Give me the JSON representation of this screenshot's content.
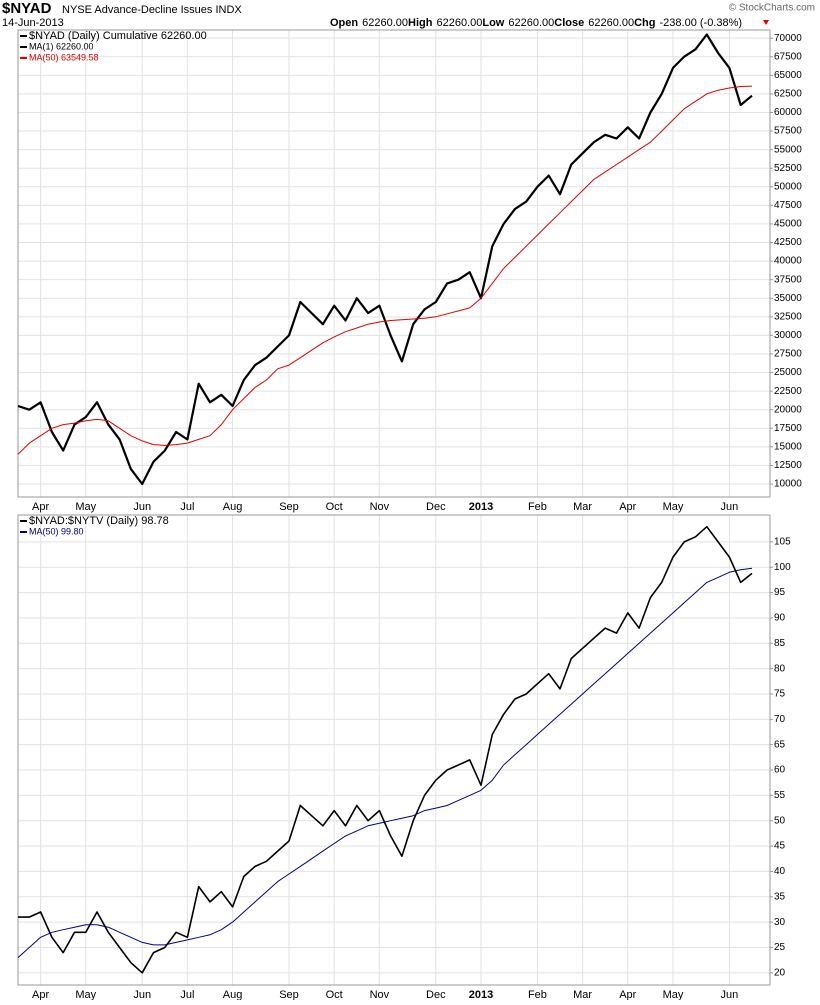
{
  "header": {
    "symbol": "$NYAD",
    "name": "NYSE Advance-Decline Issues INDX",
    "date": "14-Jun-2013",
    "quote": [
      {
        "label": "Open",
        "value": "62260.00"
      },
      {
        "label": "High",
        "value": "62260.00"
      },
      {
        "label": "Low",
        "value": "62260.00"
      },
      {
        "label": "Close",
        "value": "62260.00"
      },
      {
        "label": "Chg",
        "value": "-238.00 (-0.38%)"
      }
    ],
    "copyright": "© StockCharts.com"
  },
  "chart_data": [
    {
      "type": "line",
      "extra_legend": "MA(1) 62260.00",
      "categories": [
        null,
        null,
        "Apr",
        null,
        null,
        null,
        "May",
        null,
        null,
        null,
        null,
        "Jun",
        null,
        null,
        null,
        "Jul",
        null,
        null,
        null,
        "Aug",
        null,
        null,
        null,
        null,
        "Sep",
        null,
        null,
        null,
        "Oct",
        null,
        null,
        null,
        "Nov",
        null,
        null,
        null,
        null,
        "Dec",
        null,
        null,
        null,
        "2013",
        null,
        null,
        null,
        null,
        "Feb",
        null,
        null,
        null,
        "Mar",
        null,
        null,
        null,
        "Apr",
        null,
        null,
        null,
        "May",
        null,
        null,
        null,
        null,
        "Jun",
        null,
        null
      ],
      "series": [
        {
          "name": "$NYAD (Daily) Cumulative 62260.00",
          "color": "#000000",
          "width": 2.2,
          "values": [
            20500,
            20000,
            21000,
            17000,
            14500,
            18000,
            19000,
            21000,
            18000,
            16000,
            12000,
            10000,
            13000,
            14500,
            17000,
            16000,
            23500,
            21000,
            22000,
            20500,
            24000,
            26000,
            27000,
            28500,
            30000,
            34500,
            33000,
            31500,
            34000,
            32000,
            35000,
            33000,
            34000,
            30000,
            26500,
            31500,
            33500,
            34500,
            37000,
            37500,
            38500,
            35000,
            42000,
            45000,
            47000,
            48000,
            50000,
            51500,
            49000,
            53000,
            54500,
            56000,
            57000,
            56500,
            58000,
            56500,
            60000,
            62500,
            66000,
            67500,
            68500,
            70500,
            68000,
            66000,
            61000,
            62260
          ]
        },
        {
          "name": "MA(50) 63549.58",
          "color": "#e00000",
          "width": 1,
          "values": [
            14000,
            15500,
            16500,
            17500,
            18000,
            18200,
            18500,
            18700,
            18500,
            17500,
            16500,
            15800,
            15300,
            15200,
            15300,
            15500,
            16000,
            16500,
            18000,
            20000,
            21500,
            23000,
            24000,
            25500,
            26000,
            27000,
            28000,
            29000,
            29800,
            30500,
            31000,
            31500,
            31800,
            32000,
            32100,
            32200,
            32300,
            32500,
            32900,
            33300,
            33700,
            35000,
            37000,
            39000,
            40500,
            42000,
            43500,
            45000,
            46500,
            48000,
            49500,
            51000,
            52000,
            53000,
            54000,
            55000,
            56000,
            57500,
            59000,
            60500,
            61500,
            62500,
            63000,
            63300,
            63500,
            63549.58
          ]
        }
      ],
      "ylim": [
        8250,
        71100
      ],
      "yticks": [
        10000,
        12500,
        15000,
        17500,
        20000,
        22500,
        25000,
        27500,
        30000,
        32500,
        35000,
        37500,
        40000,
        42500,
        45000,
        47500,
        50000,
        52500,
        55000,
        57500,
        60000,
        62500,
        65000,
        67500,
        70000
      ],
      "grid": true
    },
    {
      "type": "line",
      "categories": [
        null,
        null,
        "Apr",
        null,
        null,
        null,
        "May",
        null,
        null,
        null,
        null,
        "Jun",
        null,
        null,
        null,
        "Jul",
        null,
        null,
        null,
        "Aug",
        null,
        null,
        null,
        null,
        "Sep",
        null,
        null,
        null,
        "Oct",
        null,
        null,
        null,
        "Nov",
        null,
        null,
        null,
        null,
        "Dec",
        null,
        null,
        null,
        "2013",
        null,
        null,
        null,
        null,
        "Feb",
        null,
        null,
        null,
        "Mar",
        null,
        null,
        null,
        "Apr",
        null,
        null,
        null,
        "May",
        null,
        null,
        null,
        null,
        "Jun",
        null,
        null
      ],
      "series": [
        {
          "name": "$NYAD:$NYTV (Daily) 98.78",
          "color": "#000000",
          "width": 1.6,
          "values": [
            31,
            31,
            32,
            27,
            24,
            28,
            28,
            32,
            28,
            25,
            22,
            20,
            24,
            25,
            28,
            27,
            37,
            34,
            36,
            33,
            39,
            41,
            42,
            44,
            46,
            53,
            51,
            49,
            52,
            49,
            53,
            50,
            52,
            47,
            43,
            50,
            55,
            58,
            60,
            61,
            62,
            57,
            67,
            71,
            74,
            75,
            77,
            79,
            76,
            82,
            84,
            86,
            88,
            87,
            91,
            88,
            94,
            97,
            102,
            105,
            106,
            108,
            105,
            102,
            97,
            98.78
          ]
        },
        {
          "name": "MA(50) 99.80",
          "color": "#00008b",
          "width": 1,
          "values": [
            23,
            25,
            27,
            28,
            28.5,
            29,
            29.5,
            29.5,
            29,
            28,
            27,
            26,
            25.5,
            25.5,
            26,
            26.5,
            27,
            27.5,
            28.5,
            30,
            32,
            34,
            36,
            38,
            39.5,
            41,
            42.5,
            44,
            45.5,
            47,
            48,
            49,
            49.5,
            50,
            50.5,
            51,
            52,
            52.5,
            53,
            54,
            55,
            56,
            58,
            61,
            63,
            65,
            67,
            69,
            71,
            73,
            75,
            77,
            79,
            81,
            83,
            85,
            87,
            89,
            91,
            93,
            95,
            97,
            98,
            99,
            99.5,
            99.8
          ]
        }
      ],
      "ylim": [
        17.6,
        110.3
      ],
      "yticks": [
        20,
        25,
        30,
        35,
        40,
        45,
        50,
        55,
        60,
        65,
        70,
        75,
        80,
        85,
        90,
        95,
        100,
        105
      ],
      "grid": true
    }
  ]
}
